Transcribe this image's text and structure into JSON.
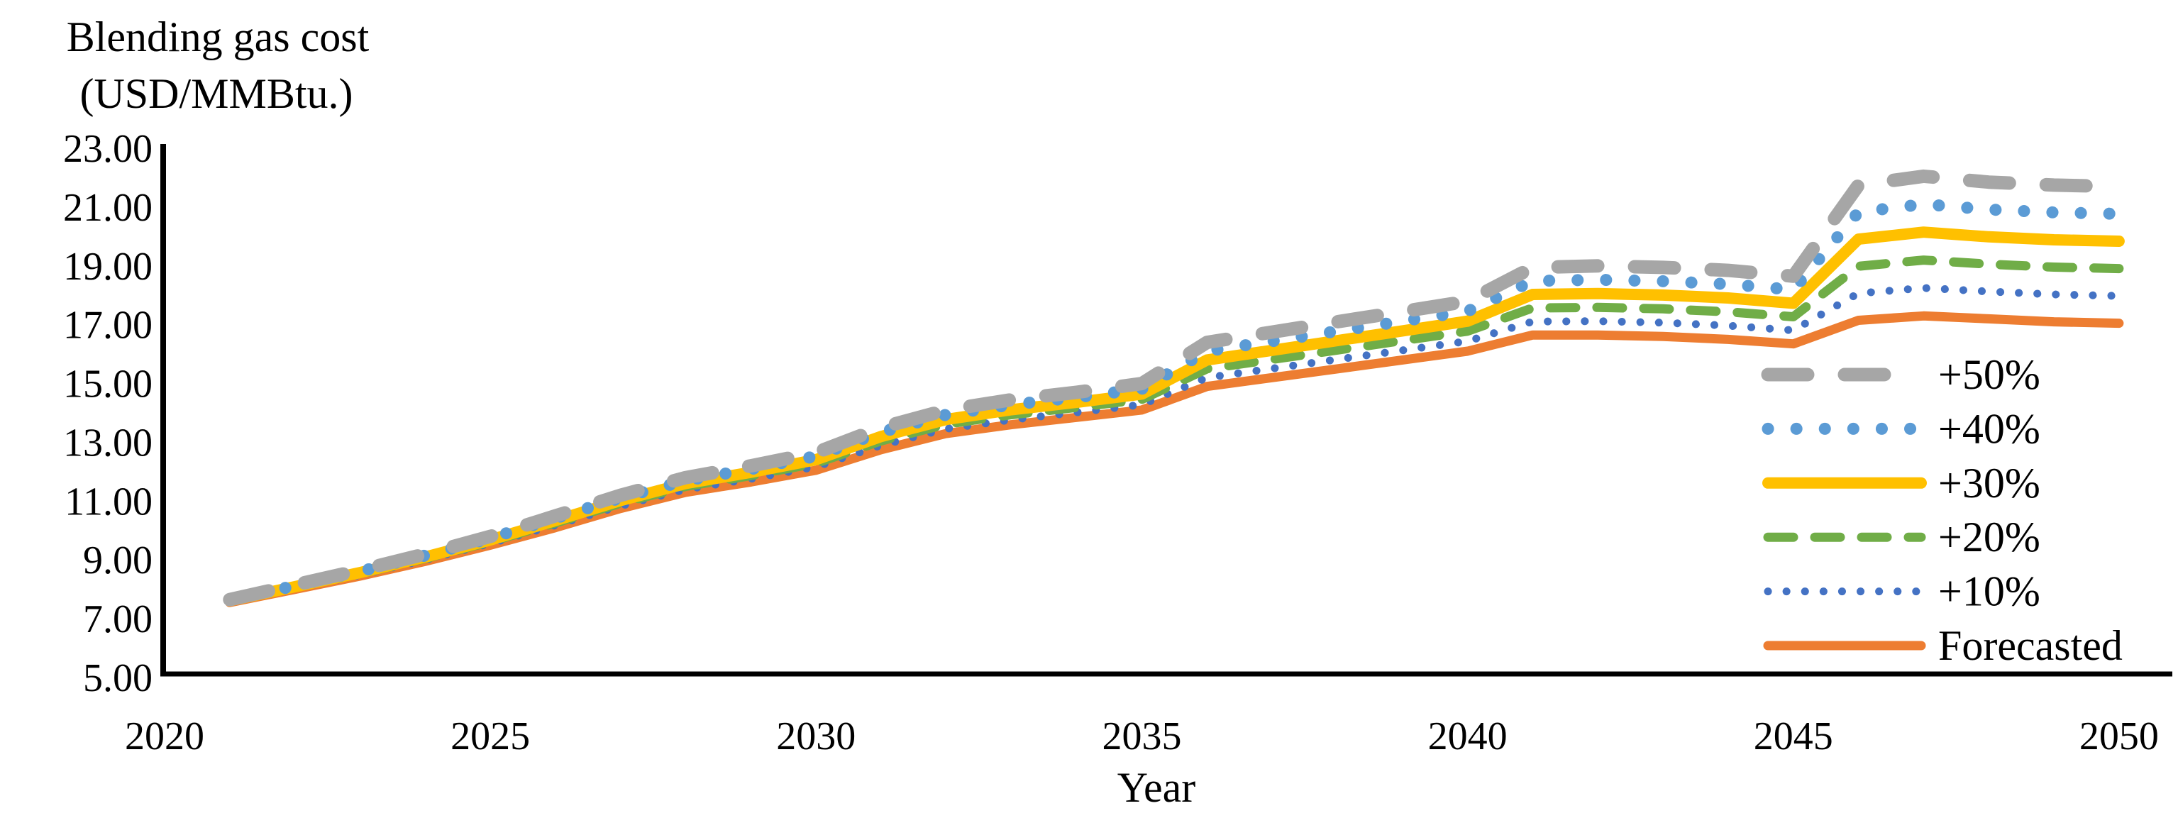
{
  "figure": {
    "background": "#ffffff",
    "axis_color": "#000000",
    "text_color": "#000000"
  },
  "chart_data": {
    "type": "line",
    "title": "Blending gas cost (USD/MMBtu.)",
    "title_lines": [
      "Blending gas cost",
      "(USD/MMBtu.)"
    ],
    "xlabel": "Year",
    "ylabel": "Blending gas cost (USD/MMBtu.)",
    "xlim": [
      2020,
      2050
    ],
    "ylim": [
      5,
      23
    ],
    "grid": false,
    "legend_position": "inside-right",
    "x_ticks": [
      "2020",
      "2025",
      "2030",
      "2035",
      "2040",
      "2045",
      "2050"
    ],
    "y_ticks": [
      "23.00",
      "21.00",
      "19.00",
      "17.00",
      "15.00",
      "13.00",
      "11.00",
      "9.00",
      "7.00",
      "5.00"
    ],
    "years": [
      2021,
      2022,
      2023,
      2024,
      2025,
      2026,
      2027,
      2028,
      2029,
      2030,
      2031,
      2032,
      2033,
      2034,
      2035,
      2036,
      2037,
      2038,
      2039,
      2040,
      2041,
      2042,
      2043,
      2044,
      2045,
      2046,
      2047,
      2048,
      2049,
      2050
    ],
    "series": [
      {
        "name": "+50%",
        "color": "#A6A6A6",
        "style": "long-dash",
        "values": [
          7.65,
          8.15,
          8.65,
          9.2,
          9.8,
          10.5,
          11.2,
          11.8,
          12.2,
          12.65,
          13.5,
          14.1,
          14.45,
          14.7,
          15.0,
          16.4,
          16.75,
          17.1,
          17.45,
          17.8,
          18.95,
          19.0,
          18.95,
          18.85,
          18.65,
          21.75,
          22.05,
          21.85,
          21.75,
          21.7
        ]
      },
      {
        "name": "+40%",
        "color": "#5B9BD5",
        "style": "dot-large",
        "values": [
          7.63,
          8.12,
          8.61,
          9.15,
          9.74,
          10.42,
          11.11,
          11.7,
          12.09,
          12.53,
          13.35,
          13.94,
          14.28,
          14.53,
          14.82,
          16.1,
          16.44,
          16.78,
          17.12,
          17.46,
          18.49,
          18.53,
          18.48,
          18.38,
          18.19,
          20.83,
          21.1,
          20.92,
          20.82,
          20.77
        ]
      },
      {
        "name": "+30%",
        "color": "#FFC000",
        "style": "solid-thick",
        "values": [
          7.61,
          8.09,
          8.57,
          9.1,
          9.68,
          10.34,
          11.02,
          11.6,
          11.98,
          12.41,
          13.2,
          13.78,
          14.11,
          14.36,
          14.64,
          15.8,
          16.13,
          16.46,
          16.79,
          17.12,
          18.03,
          18.06,
          18.01,
          17.91,
          17.73,
          19.91,
          20.15,
          19.99,
          19.89,
          19.84
        ]
      },
      {
        "name": "+20%",
        "color": "#70AD47",
        "style": "dash",
        "values": [
          7.59,
          8.06,
          8.53,
          9.05,
          9.62,
          10.26,
          10.93,
          11.5,
          11.87,
          12.29,
          13.05,
          13.62,
          13.94,
          14.19,
          14.46,
          15.5,
          15.82,
          16.14,
          16.46,
          16.78,
          17.57,
          17.59,
          17.54,
          17.44,
          17.27,
          18.99,
          19.2,
          19.06,
          18.96,
          18.91
        ]
      },
      {
        "name": "+10%",
        "color": "#4472C4",
        "style": "dot-small",
        "values": [
          7.57,
          8.03,
          8.49,
          9.0,
          9.56,
          10.18,
          10.84,
          11.4,
          11.76,
          12.17,
          12.9,
          13.46,
          13.77,
          14.02,
          14.28,
          15.2,
          15.51,
          15.82,
          16.13,
          16.44,
          17.11,
          17.12,
          17.07,
          16.97,
          16.81,
          18.07,
          18.25,
          18.13,
          18.03,
          17.98
        ]
      },
      {
        "name": "Forecasted",
        "color": "#ED7D31",
        "style": "solid",
        "values": [
          7.55,
          8.0,
          8.45,
          8.95,
          9.5,
          10.1,
          10.75,
          11.3,
          11.65,
          12.05,
          12.75,
          13.3,
          13.6,
          13.85,
          14.1,
          14.9,
          15.2,
          15.5,
          15.8,
          16.1,
          16.65,
          16.65,
          16.6,
          16.5,
          16.35,
          17.15,
          17.3,
          17.2,
          17.1,
          17.05
        ]
      }
    ]
  }
}
